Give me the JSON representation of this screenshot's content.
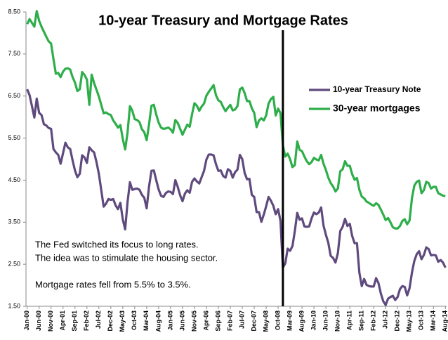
{
  "chart_data": {
    "type": "line",
    "title": "10-year Treasury and Mortgage Rates",
    "annotations": [
      "The Fed switched its focus to long rates.",
      "The idea was to stimulate the housing sector.",
      "Mortgage rates fell from 5.5% to 3.5%."
    ],
    "reference_line_x": 107,
    "legend": "right",
    "ylim": [
      1.5,
      8.5
    ],
    "yticks": [
      {
        "value": 8.5,
        "label": "8.50"
      },
      {
        "value": 7.5,
        "label": "7.50"
      },
      {
        "value": 6.5,
        "label": "6.50"
      },
      {
        "value": 5.5,
        "label": "5.50"
      },
      {
        "value": 4.5,
        "label": "4.50"
      },
      {
        "value": 3.5,
        "label": "3.50"
      },
      {
        "value": 2.5,
        "label": "2.50"
      },
      {
        "value": 1.5,
        "label": "1.50"
      }
    ],
    "categories": [
      "Jan-00",
      null,
      null,
      null,
      null,
      "Jun-00",
      null,
      null,
      null,
      null,
      "Nov-00",
      null,
      null,
      null,
      null,
      "Apr-01",
      null,
      null,
      null,
      null,
      "Sep-01",
      null,
      null,
      null,
      null,
      "Feb-02",
      null,
      null,
      null,
      null,
      "Jul-02",
      null,
      null,
      null,
      null,
      "Dec-02",
      null,
      null,
      null,
      null,
      "May-03",
      null,
      null,
      null,
      null,
      "Oct-03",
      null,
      null,
      null,
      null,
      "Mar-04",
      null,
      null,
      null,
      null,
      "Aug-04",
      null,
      null,
      null,
      null,
      "Jan-05",
      null,
      null,
      null,
      null,
      "Jun-05",
      null,
      null,
      null,
      null,
      "Nov-05",
      null,
      null,
      null,
      null,
      "Apr-06",
      null,
      null,
      null,
      null,
      "Sep-06",
      null,
      null,
      null,
      null,
      "Feb-07",
      null,
      null,
      null,
      null,
      "Jul-07",
      null,
      null,
      null,
      null,
      "Dec-07",
      null,
      null,
      null,
      null,
      "May-08",
      null,
      null,
      null,
      null,
      "Oct-08",
      null,
      null,
      null,
      null,
      "Mar-09",
      null,
      null,
      null,
      null,
      "Aug-09",
      null,
      null,
      null,
      null,
      "Jan-10",
      null,
      null,
      null,
      null,
      "Jun-10",
      null,
      null,
      null,
      null,
      "Nov-10",
      null,
      null,
      null,
      null,
      "Apr-11",
      null,
      null,
      null,
      null,
      "Sep-11",
      null,
      null,
      null,
      null,
      "Feb-12",
      null,
      null,
      null,
      null,
      "Jul-12",
      null,
      null,
      null,
      null,
      "Dec-12",
      null,
      null,
      null,
      null,
      "May-13",
      null,
      null,
      null,
      null,
      "Oct-13",
      null,
      null,
      null,
      null,
      "Mar-14",
      null,
      null,
      null,
      null,
      "Aug-14"
    ],
    "series": [
      {
        "name": "10-year Treasury Note",
        "color": "#5f4a7d",
        "values": [
          6.66,
          6.52,
          6.26,
          5.99,
          6.44,
          6.1,
          6.05,
          5.83,
          5.8,
          5.74,
          5.72,
          5.24,
          5.16,
          5.1,
          4.89,
          5.14,
          5.39,
          5.28,
          5.24,
          4.97,
          4.73,
          4.57,
          4.65,
          5.09,
          5.04,
          4.91,
          5.28,
          5.21,
          5.16,
          4.93,
          4.65,
          4.26,
          3.87,
          3.94,
          4.05,
          4.03,
          4.05,
          3.9,
          3.81,
          3.96,
          3.57,
          3.33,
          3.98,
          4.45,
          4.27,
          4.29,
          4.3,
          4.27,
          4.15,
          4.08,
          3.83,
          4.35,
          4.72,
          4.73,
          4.5,
          4.28,
          4.13,
          4.1,
          4.19,
          4.23,
          4.22,
          4.17,
          4.5,
          4.34,
          4.14,
          4.0,
          4.18,
          4.26,
          4.2,
          4.46,
          4.54,
          4.47,
          4.42,
          4.57,
          4.72,
          4.99,
          5.11,
          5.11,
          5.09,
          4.88,
          4.72,
          4.73,
          4.6,
          4.56,
          4.76,
          4.72,
          4.56,
          4.69,
          4.75,
          5.1,
          5.0,
          4.67,
          4.52,
          4.53,
          4.15,
          4.1,
          3.74,
          3.74,
          3.51,
          3.68,
          3.88,
          4.1,
          4.01,
          3.89,
          3.69,
          3.81,
          3.53,
          2.42,
          2.52,
          2.87,
          2.82,
          2.93,
          3.29,
          3.72,
          3.56,
          3.59,
          3.4,
          3.39,
          3.4,
          3.59,
          3.73,
          3.69,
          3.73,
          3.85,
          3.42,
          3.2,
          3.01,
          2.7,
          2.65,
          2.54,
          2.76,
          3.29,
          3.39,
          3.58,
          3.41,
          3.46,
          3.17,
          3.0,
          3.0,
          2.3,
          1.98,
          2.15,
          2.01,
          1.98,
          1.97,
          1.97,
          2.17,
          2.05,
          1.8,
          1.62,
          1.53,
          1.68,
          1.72,
          1.75,
          1.65,
          1.72,
          1.91,
          1.98,
          1.96,
          1.76,
          1.93,
          2.3,
          2.58,
          2.74,
          2.81,
          2.62,
          2.72,
          2.9,
          2.86,
          2.71,
          2.72,
          2.71,
          2.56,
          2.6,
          2.54,
          2.42
        ]
      },
      {
        "name": "30-year mortgages",
        "color": "#2eae4a",
        "values": [
          8.21,
          8.33,
          8.24,
          8.15,
          8.52,
          8.29,
          8.15,
          8.03,
          7.91,
          7.8,
          7.75,
          7.38,
          7.03,
          7.05,
          6.95,
          7.08,
          7.15,
          7.16,
          7.13,
          6.95,
          6.82,
          6.62,
          6.66,
          7.07,
          7.0,
          6.89,
          6.29,
          7.01,
          6.81,
          6.65,
          6.49,
          6.29,
          6.09,
          6.11,
          6.07,
          6.05,
          5.92,
          5.84,
          5.75,
          5.81,
          5.48,
          5.23,
          5.63,
          6.26,
          6.15,
          5.95,
          5.93,
          5.88,
          5.71,
          5.64,
          5.45,
          5.83,
          6.27,
          6.29,
          6.06,
          5.87,
          5.75,
          5.72,
          5.73,
          5.75,
          5.71,
          5.63,
          5.93,
          5.86,
          5.72,
          5.58,
          5.7,
          5.82,
          5.77,
          6.07,
          6.33,
          6.27,
          6.15,
          6.25,
          6.32,
          6.51,
          6.6,
          6.68,
          6.76,
          6.52,
          6.4,
          6.36,
          6.24,
          6.14,
          6.22,
          6.29,
          6.16,
          6.18,
          6.26,
          6.66,
          6.7,
          6.57,
          6.38,
          6.38,
          6.21,
          6.1,
          5.76,
          5.92,
          5.97,
          5.92,
          6.04,
          6.32,
          6.43,
          6.48,
          6.04,
          6.2,
          6.09,
          5.33,
          5.06,
          5.13,
          5.0,
          4.81,
          4.86,
          5.42,
          5.22,
          5.19,
          5.06,
          4.95,
          4.88,
          4.93,
          5.03,
          4.99,
          4.97,
          5.1,
          4.89,
          4.74,
          4.56,
          4.43,
          4.35,
          4.23,
          4.3,
          4.71,
          4.76,
          4.95,
          4.84,
          4.84,
          4.64,
          4.51,
          4.55,
          4.27,
          4.11,
          4.07,
          3.99,
          3.96,
          3.92,
          3.89,
          3.95,
          3.91,
          3.8,
          3.68,
          3.55,
          3.6,
          3.5,
          3.38,
          3.35,
          3.35,
          3.41,
          3.53,
          3.57,
          3.45,
          3.54,
          4.07,
          4.37,
          4.46,
          4.49,
          4.19,
          4.26,
          4.46,
          4.43,
          4.3,
          4.34,
          4.34,
          4.19,
          4.16,
          4.13,
          4.12
        ]
      }
    ]
  }
}
